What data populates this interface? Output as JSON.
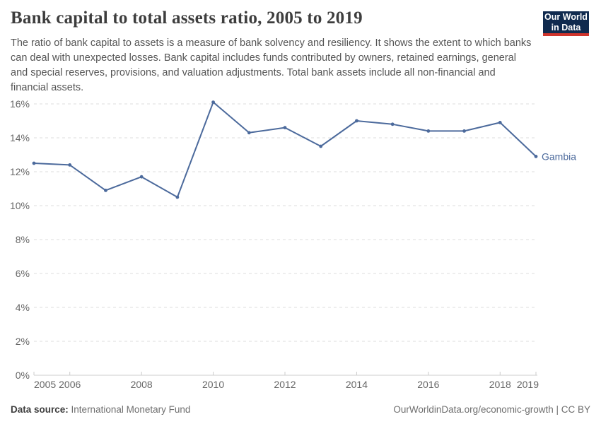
{
  "header": {
    "title": "Bank capital to total assets ratio, 2005 to 2019",
    "subtitle": "The ratio of bank capital to assets is a measure of bank solvency and resiliency. It shows the extent to which banks can deal with unexpected losses. Bank capital includes funds contributed by owners, retained earnings, general and special reserves, provisions, and valuation adjustments. Total bank assets include all non-financial and financial assets.",
    "logo": {
      "line1": "Our World",
      "line2": "in Data",
      "bg": "#102a4e",
      "accent": "#d0342c"
    }
  },
  "chart_data": {
    "type": "line",
    "title": "Bank capital to total assets ratio, 2005 to 2019",
    "x": [
      2005,
      2006,
      2007,
      2008,
      2009,
      2010,
      2011,
      2012,
      2013,
      2014,
      2015,
      2016,
      2017,
      2018,
      2019
    ],
    "series": [
      {
        "name": "Gambia",
        "color": "#4c6a9c",
        "values": [
          12.5,
          12.4,
          10.9,
          11.7,
          10.5,
          16.1,
          14.3,
          14.6,
          13.5,
          15.0,
          14.8,
          14.4,
          14.4,
          14.9,
          12.9
        ]
      }
    ],
    "ylim": [
      0,
      16
    ],
    "yticks": [
      0,
      2,
      4,
      6,
      8,
      10,
      12,
      14,
      16
    ],
    "ytick_labels": [
      "0%",
      "2%",
      "4%",
      "6%",
      "8%",
      "10%",
      "12%",
      "14%",
      "16%"
    ],
    "xticks": [
      2005,
      2006,
      2008,
      2010,
      2012,
      2014,
      2016,
      2018,
      2019
    ],
    "xtick_labels": [
      "2005",
      "2006",
      "2008",
      "2010",
      "2012",
      "2014",
      "2016",
      "2018",
      "2019"
    ],
    "grid": "horizontal-dashed",
    "legend": "end-of-line-label",
    "end_label": "Gambia"
  },
  "footer": {
    "source_label": "Data source:",
    "source_value": "International Monetary Fund",
    "attribution": "OurWorldinData.org/economic-growth | CC BY"
  },
  "colors": {
    "line": "#4c6a9c",
    "grid": "#dddddd",
    "axis": "#cccccc",
    "tick_text": "#666666"
  }
}
